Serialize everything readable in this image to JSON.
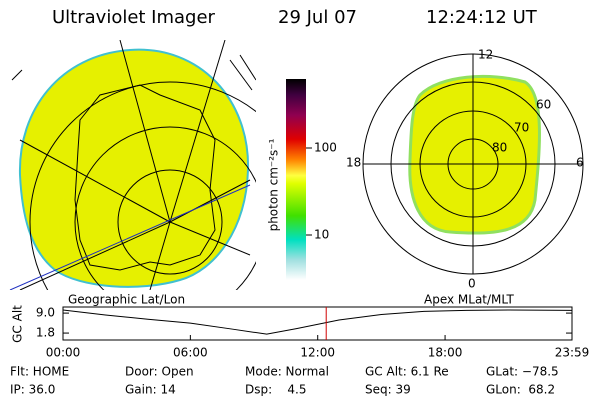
{
  "header": {
    "title": "Ultraviolet Imager",
    "date": "29 Jul 07",
    "time": "12:24:12 UT"
  },
  "geo_map": {
    "caption": "Geographic Lat/Lon"
  },
  "polar_map": {
    "caption": "Apex  MLat/MLT",
    "mlt_labels": [
      "12",
      "6",
      "0",
      "18"
    ],
    "lat_labels": [
      "60",
      "70",
      "80"
    ]
  },
  "colorbar": {
    "label": "photon cm⁻²s⁻¹",
    "ticks": [
      "100",
      "10"
    ]
  },
  "chart_data": {
    "type": "line",
    "ylabel": "GC Alt",
    "x": [
      0,
      2,
      4,
      6,
      8,
      9.6,
      11,
      13,
      15,
      17,
      19,
      21,
      23.98
    ],
    "series": [
      {
        "name": null,
        "color": "#000000",
        "values": [
          10.1,
          8.3,
          6.8,
          5.4,
          3.2,
          1.4,
          3.4,
          6.5,
          8.5,
          9.6,
          10.0,
          10.1,
          10.0
        ]
      }
    ],
    "xlim": [
      0,
      23.98
    ],
    "xticks": [
      {
        "value": 0,
        "label": "00:00"
      },
      {
        "value": 6,
        "label": "06:00"
      },
      {
        "value": 12,
        "label": "12:00"
      },
      {
        "value": 18,
        "label": "18:00"
      },
      {
        "value": 23.98,
        "label": "23:59"
      }
    ],
    "ylim": [
      -0.7,
      11.2
    ],
    "yticks": [
      {
        "value": 9.0,
        "label": "9.0"
      },
      {
        "value": 1.8,
        "label": "1.8"
      }
    ],
    "marker_x": 12.4,
    "marker_color": "#d00000"
  },
  "info": [
    [
      "Flt: HOME",
      "Door: Open",
      "Mode: Normal",
      "GC Alt: 6.1 Re",
      "GLat: −78.5"
    ],
    [
      "IP: 36.0",
      "Gain: 14",
      "Dsp:    4.5",
      "Seq: 39",
      "GLon:  68.2"
    ]
  ]
}
